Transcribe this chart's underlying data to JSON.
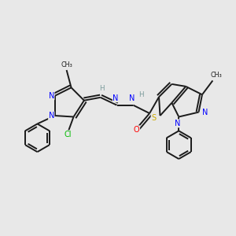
{
  "background_color": "#e8e8e8",
  "bond_color": "#1a1a1a",
  "atom_colors": {
    "N": "#0000ff",
    "O": "#ff0000",
    "S": "#ccaa00",
    "Cl": "#00bb00",
    "H": "#7a9a9a",
    "C": "#1a1a1a"
  },
  "figsize": [
    3.0,
    3.0
  ],
  "dpi": 100,
  "bg": "#e8e8e8"
}
